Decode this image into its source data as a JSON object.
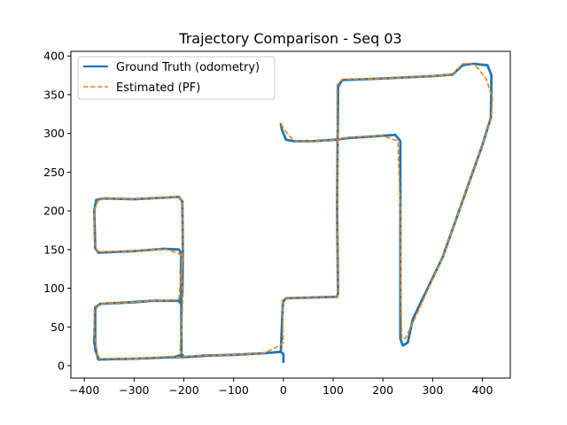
{
  "chart_data": {
    "type": "line",
    "title": "Trajectory Comparison - Seq 03",
    "xlabel": "",
    "ylabel": "",
    "xlim": [
      -427,
      456
    ],
    "ylim": [
      -16,
      406
    ],
    "xticks": [
      -400,
      -300,
      -200,
      -100,
      0,
      100,
      200,
      300,
      400
    ],
    "yticks": [
      0,
      50,
      100,
      150,
      200,
      250,
      300,
      350,
      400
    ],
    "grid": false,
    "legend_position": "top-left",
    "series": [
      {
        "name": "Ground Truth (odometry)",
        "color": "#1f77b4",
        "style": "solid",
        "points": [
          [
            0,
            5
          ],
          [
            0,
            15
          ],
          [
            -5,
            18
          ],
          [
            -40,
            16
          ],
          [
            -100,
            14
          ],
          [
            -160,
            13
          ],
          [
            -200,
            11
          ],
          [
            -205,
            16
          ],
          [
            -205,
            80
          ],
          [
            -206,
            120
          ],
          [
            -205,
            145
          ],
          [
            -210,
            150
          ],
          [
            -240,
            151
          ],
          [
            -300,
            148
          ],
          [
            -372,
            146
          ],
          [
            -378,
            152
          ],
          [
            -380,
            200
          ],
          [
            -376,
            214
          ],
          [
            -360,
            216
          ],
          [
            -300,
            215
          ],
          [
            -210,
            218
          ],
          [
            -203,
            212
          ],
          [
            -202,
            150
          ],
          [
            -203,
            90
          ],
          [
            -210,
            84
          ],
          [
            -260,
            84
          ],
          [
            -300,
            82
          ],
          [
            -368,
            80
          ],
          [
            -378,
            75
          ],
          [
            -378,
            20
          ],
          [
            -370,
            8
          ],
          [
            -300,
            9
          ],
          [
            -220,
            11
          ],
          [
            -205,
            14
          ],
          [
            -205,
            40
          ],
          [
            -205,
            80
          ],
          [
            -212,
            84
          ],
          [
            -260,
            84
          ],
          [
            -330,
            81
          ],
          [
            -368,
            80
          ],
          [
            -378,
            74
          ],
          [
            -380,
            30
          ],
          [
            -372,
            8
          ],
          [
            -300,
            9
          ],
          [
            -220,
            11
          ],
          [
            -200,
            11
          ],
          [
            -150,
            13
          ],
          [
            -100,
            14
          ],
          [
            -40,
            16
          ],
          [
            -5,
            18
          ],
          [
            -1,
            82
          ],
          [
            5,
            87
          ],
          [
            50,
            88
          ],
          [
            108,
            89
          ],
          [
            110,
            94
          ],
          [
            108,
            200
          ],
          [
            109,
            290
          ],
          [
            110,
            360
          ],
          [
            118,
            369
          ],
          [
            200,
            371
          ],
          [
            300,
            374
          ],
          [
            340,
            376
          ],
          [
            360,
            388
          ],
          [
            380,
            390
          ],
          [
            410,
            388
          ],
          [
            418,
            375
          ],
          [
            417,
            320
          ],
          [
            400,
            285
          ],
          [
            320,
            140
          ],
          [
            260,
            60
          ],
          [
            250,
            30
          ],
          [
            240,
            26
          ],
          [
            235,
            35
          ],
          [
            235,
            100
          ],
          [
            235,
            200
          ],
          [
            235,
            290
          ],
          [
            225,
            298
          ],
          [
            200,
            297
          ],
          [
            130,
            294
          ],
          [
            108,
            292
          ],
          [
            60,
            290
          ],
          [
            20,
            290
          ],
          [
            5,
            292
          ],
          [
            -3,
            305
          ],
          [
            -5,
            312
          ]
        ]
      },
      {
        "name": "Estimated (PF)",
        "color": "#ff7f0e",
        "style": "dashed",
        "points": [
          [
            -5,
            312
          ],
          [
            8,
            300
          ],
          [
            20,
            291
          ],
          [
            60,
            290
          ],
          [
            108,
            292
          ],
          [
            130,
            295
          ],
          [
            200,
            297
          ],
          [
            230,
            290
          ],
          [
            235,
            200
          ],
          [
            236,
            100
          ],
          [
            238,
            35
          ],
          [
            245,
            35
          ],
          [
            260,
            55
          ],
          [
            320,
            140
          ],
          [
            400,
            285
          ],
          [
            418,
            320
          ],
          [
            420,
            345
          ],
          [
            408,
            370
          ],
          [
            390,
            385
          ],
          [
            378,
            390
          ],
          [
            360,
            390
          ],
          [
            340,
            376
          ],
          [
            300,
            374
          ],
          [
            200,
            371
          ],
          [
            118,
            370
          ],
          [
            108,
            362
          ],
          [
            108,
            320
          ],
          [
            110,
            290
          ],
          [
            108,
            200
          ],
          [
            110,
            94
          ],
          [
            108,
            89
          ],
          [
            50,
            88
          ],
          [
            5,
            87
          ],
          [
            -2,
            85
          ],
          [
            -1,
            45
          ],
          [
            0,
            30
          ],
          [
            -10,
            25
          ],
          [
            -20,
            22
          ],
          [
            -40,
            16
          ],
          [
            -100,
            14
          ],
          [
            -160,
            13
          ],
          [
            -200,
            12
          ],
          [
            -208,
            20
          ],
          [
            -205,
            40
          ],
          [
            -202,
            90
          ],
          [
            -205,
            120
          ],
          [
            -202,
            140
          ],
          [
            -210,
            145
          ],
          [
            -240,
            151
          ],
          [
            -300,
            148
          ],
          [
            -374,
            147
          ],
          [
            -380,
            160
          ],
          [
            -380,
            200
          ],
          [
            -372,
            214
          ],
          [
            -360,
            216
          ],
          [
            -300,
            215
          ],
          [
            -210,
            218
          ],
          [
            -203,
            212
          ],
          [
            -202,
            150
          ],
          [
            -210,
            85
          ],
          [
            -260,
            84
          ],
          [
            -330,
            81
          ],
          [
            -368,
            80
          ],
          [
            -380,
            72
          ],
          [
            -380,
            40
          ],
          [
            -372,
            9
          ],
          [
            -300,
            9
          ],
          [
            -220,
            12
          ],
          [
            -200,
            10
          ]
        ]
      }
    ]
  }
}
